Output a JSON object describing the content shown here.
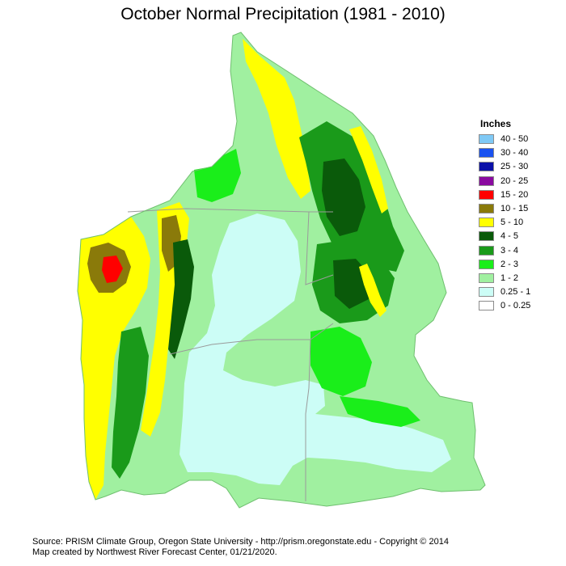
{
  "title": "October Normal Precipitation (1981 - 2010)",
  "legend": {
    "title": "Inches",
    "items": [
      {
        "label": "40 - 50",
        "color": "#7fc9f5"
      },
      {
        "label": "30 - 40",
        "color": "#1a52f0"
      },
      {
        "label": "25 - 30",
        "color": "#0a10a8"
      },
      {
        "label": "20 - 25",
        "color": "#8a0aa0"
      },
      {
        "label": "15 - 20",
        "color": "#ff0000"
      },
      {
        "label": "10 - 15",
        "color": "#8a7a0a"
      },
      {
        "label": "5 - 10",
        "color": "#ffff00"
      },
      {
        "label": "4 - 5",
        "color": "#0a5a0a"
      },
      {
        "label": "3 - 4",
        "color": "#1a9a1a"
      },
      {
        "label": "2 - 3",
        "color": "#1aee1a"
      },
      {
        "label": "1 - 2",
        "color": "#a0f0a0"
      },
      {
        "label": "0.25 - 1",
        "color": "#ccfdf6"
      },
      {
        "label": "0 - 0.25",
        "color": "#ffffff"
      }
    ]
  },
  "credits": {
    "line1": "Source: PRISM Climate Group, Oregon State University - http://prism.oregonstate.edu - Copyright © 2014",
    "line2": "Map created by Northwest River Forecast Center, 01/21/2020."
  }
}
